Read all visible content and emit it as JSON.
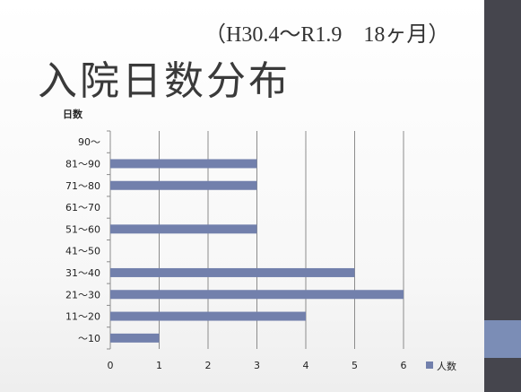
{
  "slide": {
    "subtitle": "（H30.4〜R1.9　18ヶ月）",
    "title": "入院日数分布"
  },
  "chart_data": {
    "type": "bar",
    "orientation": "horizontal",
    "title": "",
    "ylabel": "日数",
    "xlabel": "",
    "categories": [
      "〜10",
      "11〜20",
      "21〜30",
      "31〜40",
      "41〜50",
      "51〜60",
      "61〜70",
      "71〜80",
      "81〜90",
      "90〜"
    ],
    "series": [
      {
        "name": "人数",
        "values": [
          1,
          4,
          6,
          5,
          0,
          3,
          0,
          3,
          3,
          0
        ],
        "color": "#7280ac"
      }
    ],
    "xlim": [
      0,
      6
    ],
    "xticks": [
      0,
      1,
      2,
      3,
      4,
      5,
      6
    ],
    "grid": "vertical",
    "legend": "right",
    "colors": {
      "gridline": "#8c8c8c",
      "axis": "#8c8c8c"
    }
  }
}
